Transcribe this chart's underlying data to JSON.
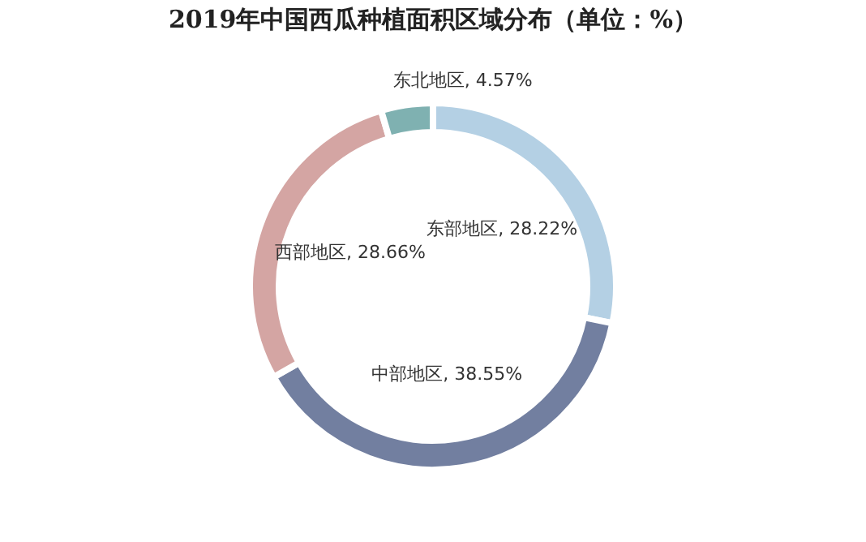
{
  "chart_data": {
    "type": "donut",
    "title": "2019年中国西瓜种植面积区域分布（单位：%）",
    "categories": [
      "东部地区",
      "中部地区",
      "西部地区",
      "东北地区"
    ],
    "values": [
      28.22,
      38.55,
      28.66,
      4.57
    ],
    "colors": [
      "#b4d0e4",
      "#727fa0",
      "#d4a5a3",
      "#7fb1b1"
    ],
    "value_labels": [
      "28.22%",
      "38.55%",
      "28.66%",
      "4.57%"
    ],
    "legend": false
  }
}
